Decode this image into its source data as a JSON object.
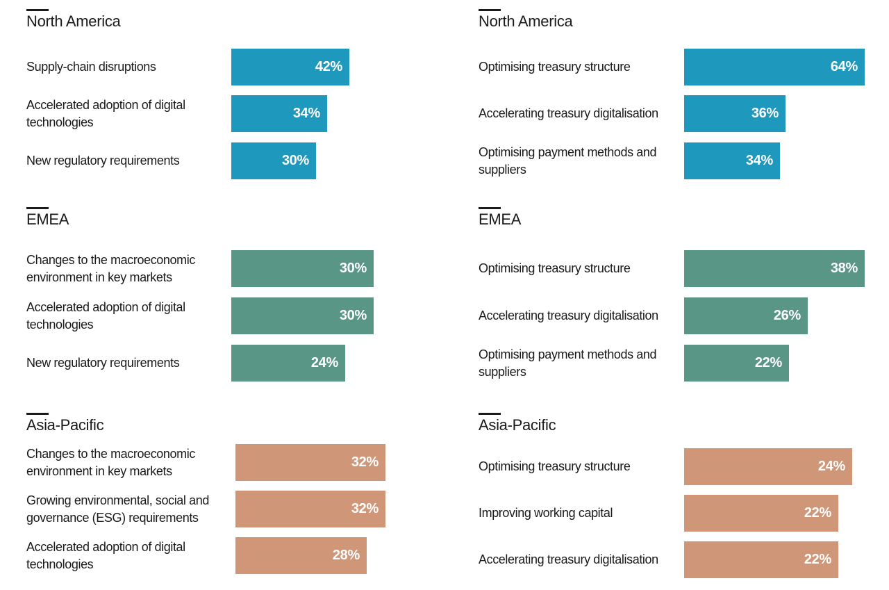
{
  "chart_data": [
    {
      "type": "bar",
      "orientation": "horizontal",
      "region": "North America",
      "categories": [
        "Supply-chain disruptions",
        "Accelerated adoption of digital technologies",
        "New regulatory requirements"
      ],
      "values": [
        42,
        34,
        30
      ],
      "value_labels": [
        "42%",
        "34%",
        "30%"
      ],
      "color": "#1f98bd",
      "xlim": [
        0,
        73
      ]
    },
    {
      "type": "bar",
      "orientation": "horizontal",
      "region": "North America",
      "categories": [
        "Optimising treasury structure",
        "Accelerating treasury digitalisation",
        "Optimising payment methods and suppliers"
      ],
      "values": [
        64,
        36,
        34
      ],
      "value_labels": [
        "64%",
        "36%",
        "34%"
      ],
      "color": "#1f98bd",
      "xlim": [
        0,
        73
      ]
    },
    {
      "type": "bar",
      "orientation": "horizontal",
      "region": "EMEA",
      "categories": [
        "Changes to the macroeconomic environment in key markets",
        "Accelerated adoption of digital technologies",
        "New regulatory requirements"
      ],
      "values": [
        30,
        30,
        24
      ],
      "value_labels": [
        "30%",
        "30%",
        "24%"
      ],
      "color": "#5a9686",
      "xlim": [
        0,
        45
      ]
    },
    {
      "type": "bar",
      "orientation": "horizontal",
      "region": "EMEA",
      "categories": [
        "Optimising treasury structure",
        "Accelerating treasury digitalisation",
        "Optimising payment methods and suppliers"
      ],
      "values": [
        38,
        26,
        22
      ],
      "value_labels": [
        "38%",
        "26%",
        "22%"
      ],
      "color": "#5a9686",
      "xlim": [
        0,
        45
      ]
    },
    {
      "type": "bar",
      "orientation": "horizontal",
      "region": "Asia-Pacific",
      "categories": [
        "Changes to the macroeconomic environment in key markets",
        "Growing environmental, social and governance (ESG) requirements",
        "Accelerated adoption of digital technologies"
      ],
      "values": [
        32,
        32,
        28
      ],
      "value_labels": [
        "32%",
        "32%",
        "28%"
      ],
      "color": "#cf9677",
      "xlim": [
        0,
        36
      ]
    },
    {
      "type": "bar",
      "orientation": "horizontal",
      "region": "Asia-Pacific",
      "categories": [
        "Optimising treasury structure",
        "Improving working capital",
        "Accelerating treasury digitalisation"
      ],
      "values": [
        24,
        22,
        22
      ],
      "value_labels": [
        "24%",
        "22%",
        "22%"
      ],
      "color": "#cf9677",
      "xlim": [
        0,
        29
      ]
    }
  ]
}
